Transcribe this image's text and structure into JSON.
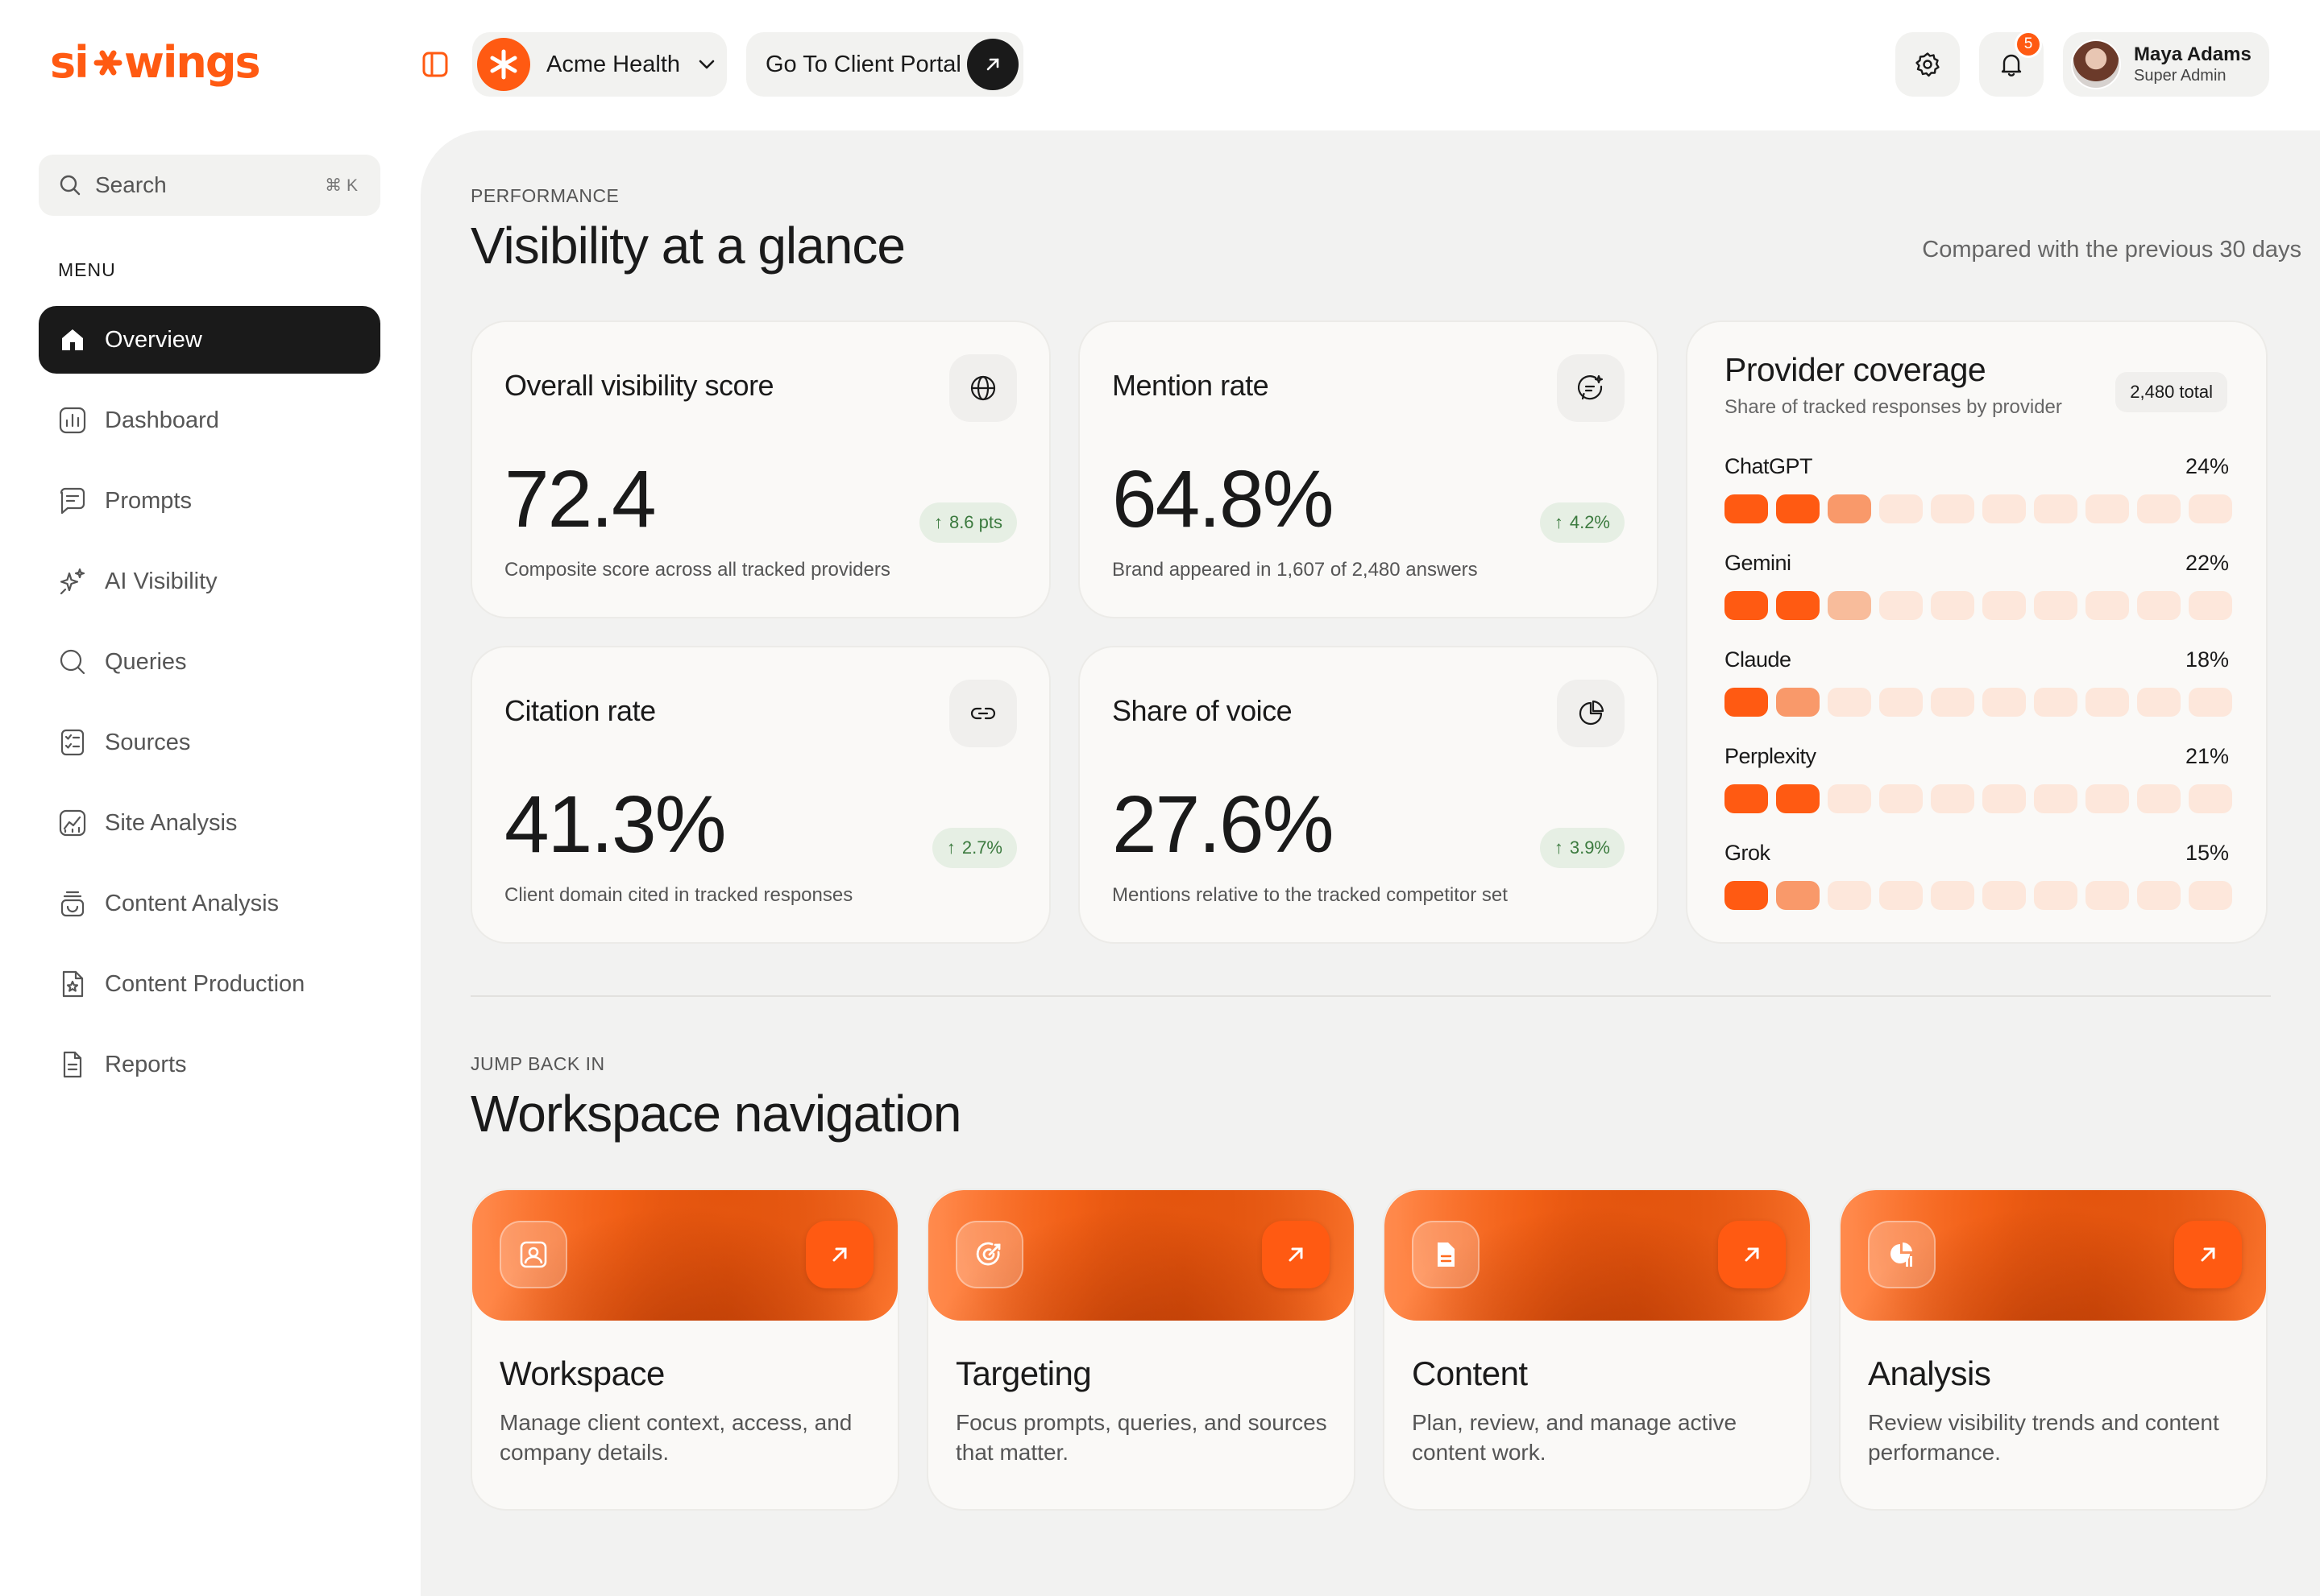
{
  "brand": {
    "logo_text": "sixwings",
    "accent": "#ff5a12"
  },
  "header": {
    "client_name": "Acme Health",
    "portal_label": "Go To Client Portal",
    "notifications_count": "5",
    "user": {
      "name": "Maya Adams",
      "role": "Super Admin"
    }
  },
  "sidebar": {
    "search_placeholder": "Search",
    "search_shortcut": "⌘ K",
    "menu_label": "MENU",
    "items": [
      {
        "label": "Overview",
        "icon": "home-icon",
        "active": true
      },
      {
        "label": "Dashboard",
        "icon": "bar-chart-icon"
      },
      {
        "label": "Prompts",
        "icon": "message-icon"
      },
      {
        "label": "AI Visibility",
        "icon": "sparkles-icon"
      },
      {
        "label": "Queries",
        "icon": "search-icon"
      },
      {
        "label": "Sources",
        "icon": "checklist-icon"
      },
      {
        "label": "Site Analysis",
        "icon": "chart-line-icon"
      },
      {
        "label": "Content Analysis",
        "icon": "stack-icon"
      },
      {
        "label": "Content Production",
        "icon": "file-star-icon"
      },
      {
        "label": "Reports",
        "icon": "document-icon"
      }
    ]
  },
  "performance": {
    "eyebrow": "PERFORMANCE",
    "title": "Visibility at a glance",
    "compare_note": "Compared with the previous 30 days",
    "metrics": [
      {
        "title": "Overall visibility score",
        "value": "72.4",
        "delta": "8.6 pts",
        "sub": "Composite score across all tracked providers",
        "icon": "globe-icon"
      },
      {
        "title": "Mention rate",
        "value": "64.8%",
        "delta": "4.2%",
        "sub": "Brand appeared in 1,607 of 2,480 answers",
        "icon": "chat-sparkle-icon"
      },
      {
        "title": "Citation rate",
        "value": "41.3%",
        "delta": "2.7%",
        "sub": "Client domain cited in tracked responses",
        "icon": "link-icon"
      },
      {
        "title": "Share of voice",
        "value": "27.6%",
        "delta": "3.9%",
        "sub": "Mentions relative to the tracked competitor set",
        "icon": "pie-icon"
      }
    ],
    "providers": {
      "title": "Provider coverage",
      "subtitle": "Share of tracked responses by provider",
      "total": "2,480 total",
      "rows": [
        {
          "name": "ChatGPT",
          "pct": "24%",
          "share": 0.24
        },
        {
          "name": "Gemini",
          "pct": "22%",
          "share": 0.22
        },
        {
          "name": "Claude",
          "pct": "18%",
          "share": 0.18
        },
        {
          "name": "Perplexity",
          "pct": "21%",
          "share": 0.21
        },
        {
          "name": "Grok",
          "pct": "15%",
          "share": 0.15
        }
      ]
    }
  },
  "workspace": {
    "eyebrow": "JUMP BACK IN",
    "title": "Workspace navigation",
    "cards": [
      {
        "title": "Workspace",
        "desc": "Manage client context, access, and company details.",
        "icon": "id-card-icon"
      },
      {
        "title": "Targeting",
        "desc": "Focus prompts, queries, and sources that matter.",
        "icon": "target-icon"
      },
      {
        "title": "Content",
        "desc": "Plan, review, and manage active content work.",
        "icon": "file-icon"
      },
      {
        "title": "Analysis",
        "desc": "Review visibility trends and content performance.",
        "icon": "pie-chart-icon"
      }
    ]
  }
}
